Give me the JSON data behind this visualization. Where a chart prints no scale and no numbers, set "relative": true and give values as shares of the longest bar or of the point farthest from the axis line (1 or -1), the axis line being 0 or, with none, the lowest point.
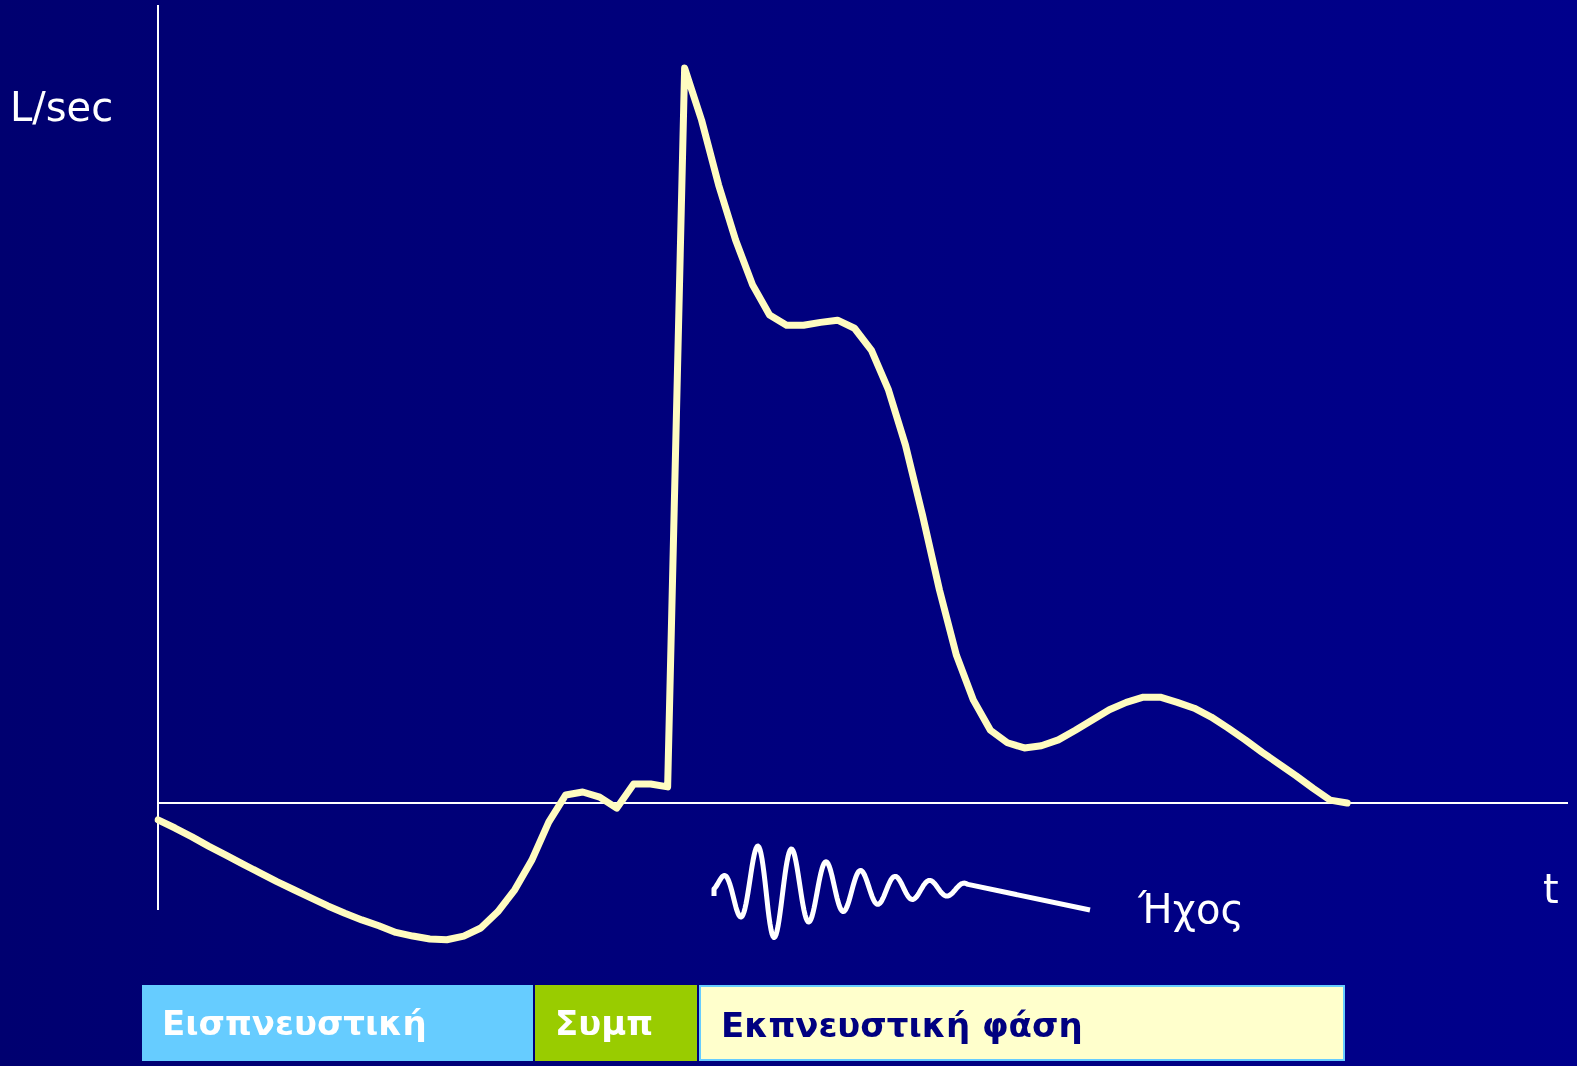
{
  "chart_data": {
    "type": "line",
    "relative": true,
    "ylabel": "L/sec",
    "xlabel": "t",
    "color": "#fffcc0",
    "line_style": "solid",
    "categories": [
      null,
      null,
      null,
      null,
      null,
      null,
      null,
      null,
      null,
      null,
      null,
      null,
      null,
      null,
      null,
      null,
      null,
      null,
      null,
      null,
      null,
      null,
      null,
      null,
      null,
      null,
      null,
      null,
      null,
      null,
      null,
      null,
      null,
      null,
      null,
      null,
      null,
      null,
      null,
      null,
      null,
      null,
      null,
      null,
      null,
      null,
      null,
      null,
      null,
      null,
      null,
      null,
      null,
      null,
      null,
      null,
      null,
      null,
      null,
      null,
      null,
      null,
      null,
      null,
      null,
      null,
      null,
      null,
      null,
      null,
      null,
      null,
      null,
      null,
      null,
      null,
      null,
      null,
      null,
      null,
      null,
      null,
      null,
      null
    ],
    "values": [
      -0.023,
      -0.034,
      -0.046,
      -0.059,
      -0.071,
      -0.083,
      -0.095,
      -0.107,
      -0.118,
      -0.129,
      -0.14,
      -0.15,
      -0.159,
      -0.167,
      -0.176,
      -0.181,
      -0.185,
      -0.186,
      -0.181,
      -0.17,
      -0.148,
      -0.118,
      -0.078,
      -0.026,
      0.011,
      0.015,
      0.008,
      -0.007,
      0.026,
      0.026,
      0.022,
      1,
      0.929,
      0.841,
      0.766,
      0.705,
      0.664,
      0.65,
      0.65,
      0.654,
      0.657,
      0.646,
      0.616,
      0.562,
      0.487,
      0.392,
      0.29,
      0.201,
      0.14,
      0.099,
      0.082,
      0.075,
      0.078,
      0.086,
      0.099,
      0.113,
      0.127,
      0.137,
      0.144,
      0.144,
      0.137,
      0.129,
      0.117,
      0.102,
      0.086,
      0.069,
      0.053,
      0.037,
      0.02,
      0.004,
      0,
      null,
      null,
      null,
      null,
      null,
      null,
      null,
      null,
      null,
      null,
      null,
      null,
      null
    ],
    "annotations": [
      "Ήχος",
      "Εισπνευστική",
      "Συμπ",
      "Εκπνευστική φάση"
    ]
  }
}
